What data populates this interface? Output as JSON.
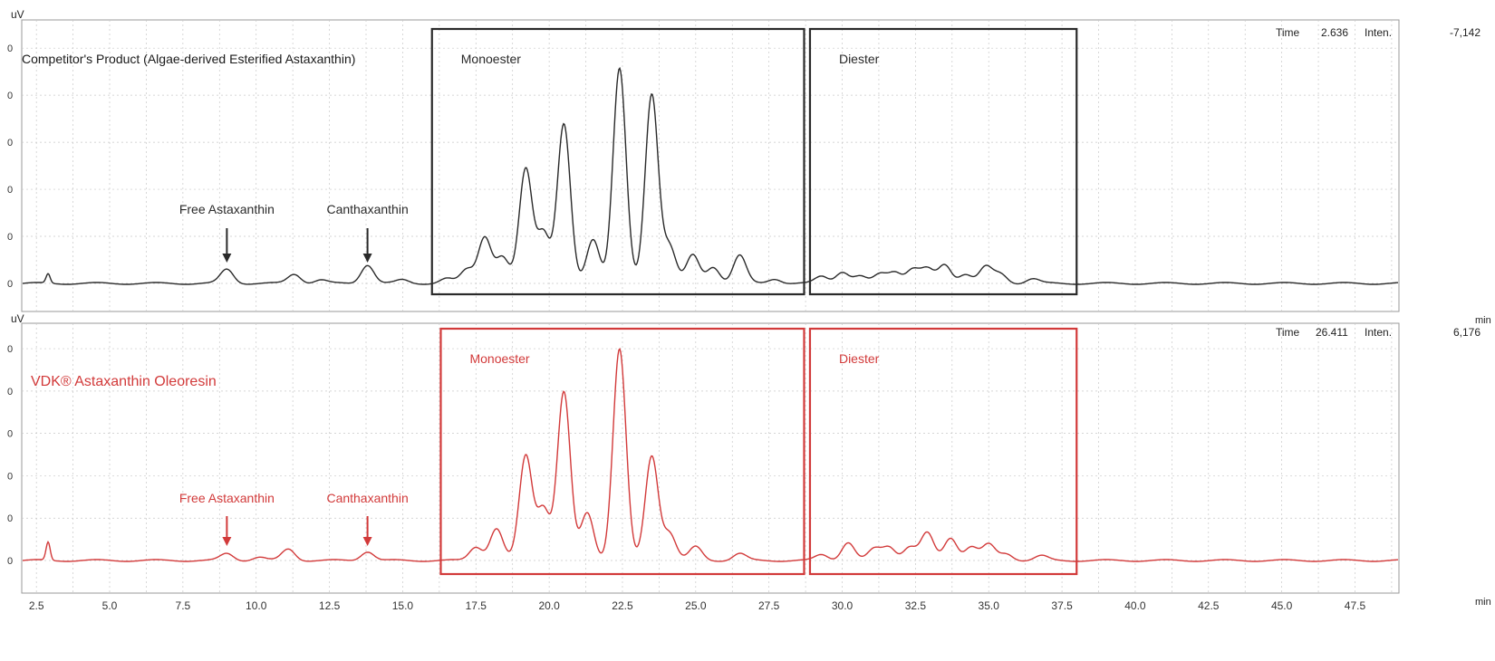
{
  "chart_data": [
    {
      "type": "line",
      "panel": "top",
      "title": "Competitor's Product (Algae-derived Esterified Astaxanthin)",
      "ylabel": "uV",
      "xunit": "min",
      "xlim": [
        2.0,
        49.0
      ],
      "status": {
        "time_label": "Time",
        "time_value": "2.636",
        "inten_label": "Inten.",
        "inten_value": "-7,142"
      },
      "color": "#2a2a2a",
      "annotations": [
        {
          "text": "Free Astaxanthin",
          "x": 9.0
        },
        {
          "text": "Canthaxanthin",
          "x": 13.8
        }
      ],
      "regions": [
        {
          "label": "Monoester",
          "x_start": 16.0,
          "x_end": 28.7
        },
        {
          "label": "Diester",
          "x_start": 28.9,
          "x_end": 38.0
        }
      ],
      "baseline": 0,
      "peaks": [
        {
          "x": 2.9,
          "y": 0.04
        },
        {
          "x": 9.0,
          "y": 0.06
        },
        {
          "x": 11.3,
          "y": 0.04
        },
        {
          "x": 12.2,
          "y": 0.015
        },
        {
          "x": 13.8,
          "y": 0.08
        },
        {
          "x": 15.0,
          "y": 0.015
        },
        {
          "x": 16.5,
          "y": 0.02
        },
        {
          "x": 17.2,
          "y": 0.06
        },
        {
          "x": 17.8,
          "y": 0.2
        },
        {
          "x": 18.4,
          "y": 0.11
        },
        {
          "x": 19.2,
          "y": 0.49
        },
        {
          "x": 19.8,
          "y": 0.22
        },
        {
          "x": 20.5,
          "y": 0.68
        },
        {
          "x": 21.5,
          "y": 0.19
        },
        {
          "x": 22.4,
          "y": 0.92
        },
        {
          "x": 23.5,
          "y": 0.81
        },
        {
          "x": 24.1,
          "y": 0.16
        },
        {
          "x": 24.9,
          "y": 0.12
        },
        {
          "x": 25.6,
          "y": 0.07
        },
        {
          "x": 26.5,
          "y": 0.12
        },
        {
          "x": 27.7,
          "y": 0.02
        },
        {
          "x": 29.3,
          "y": 0.03
        },
        {
          "x": 30.0,
          "y": 0.05
        },
        {
          "x": 30.6,
          "y": 0.03
        },
        {
          "x": 31.3,
          "y": 0.04
        },
        {
          "x": 31.8,
          "y": 0.05
        },
        {
          "x": 32.4,
          "y": 0.06
        },
        {
          "x": 32.9,
          "y": 0.06
        },
        {
          "x": 33.5,
          "y": 0.08
        },
        {
          "x": 34.2,
          "y": 0.04
        },
        {
          "x": 34.9,
          "y": 0.07
        },
        {
          "x": 35.4,
          "y": 0.04
        },
        {
          "x": 36.5,
          "y": 0.02
        }
      ]
    },
    {
      "type": "line",
      "panel": "bottom",
      "title": "VDK® Astaxanthin Oleoresin",
      "ylabel": "uV",
      "xunit": "min",
      "xlabel_ticks": [
        "2.5",
        "5.0",
        "7.5",
        "10.0",
        "12.5",
        "15.0",
        "17.5",
        "20.0",
        "22.5",
        "25.0",
        "27.5",
        "30.0",
        "32.5",
        "35.0",
        "37.5",
        "40.0",
        "42.5",
        "45.0",
        "47.5"
      ],
      "xlim": [
        2.0,
        49.0
      ],
      "status": {
        "time_label": "Time",
        "time_value": "26.411",
        "inten_label": "Inten.",
        "inten_value": "6,176"
      },
      "color": "#d23a3a",
      "annotations": [
        {
          "text": "Free Astaxanthin",
          "x": 9.0
        },
        {
          "text": "Canthaxanthin",
          "x": 13.8
        }
      ],
      "regions": [
        {
          "label": "Monoester",
          "x_start": 16.3,
          "x_end": 28.7
        },
        {
          "label": "Diester",
          "x_start": 28.9,
          "x_end": 38.0
        }
      ],
      "baseline": 0,
      "peaks": [
        {
          "x": 2.9,
          "y": 0.08
        },
        {
          "x": 9.0,
          "y": 0.03
        },
        {
          "x": 10.1,
          "y": 0.015
        },
        {
          "x": 11.1,
          "y": 0.05
        },
        {
          "x": 13.8,
          "y": 0.04
        },
        {
          "x": 17.5,
          "y": 0.06
        },
        {
          "x": 18.2,
          "y": 0.14
        },
        {
          "x": 19.2,
          "y": 0.46
        },
        {
          "x": 19.8,
          "y": 0.23
        },
        {
          "x": 20.5,
          "y": 0.74
        },
        {
          "x": 21.3,
          "y": 0.21
        },
        {
          "x": 22.4,
          "y": 0.93
        },
        {
          "x": 23.5,
          "y": 0.46
        },
        {
          "x": 24.1,
          "y": 0.12
        },
        {
          "x": 25.0,
          "y": 0.06
        },
        {
          "x": 26.5,
          "y": 0.03
        },
        {
          "x": 29.3,
          "y": 0.025
        },
        {
          "x": 30.2,
          "y": 0.08
        },
        {
          "x": 31.1,
          "y": 0.05
        },
        {
          "x": 31.6,
          "y": 0.06
        },
        {
          "x": 32.3,
          "y": 0.06
        },
        {
          "x": 32.9,
          "y": 0.12
        },
        {
          "x": 33.7,
          "y": 0.1
        },
        {
          "x": 34.4,
          "y": 0.06
        },
        {
          "x": 35.0,
          "y": 0.07
        },
        {
          "x": 35.6,
          "y": 0.03
        },
        {
          "x": 36.8,
          "y": 0.02
        }
      ]
    }
  ]
}
